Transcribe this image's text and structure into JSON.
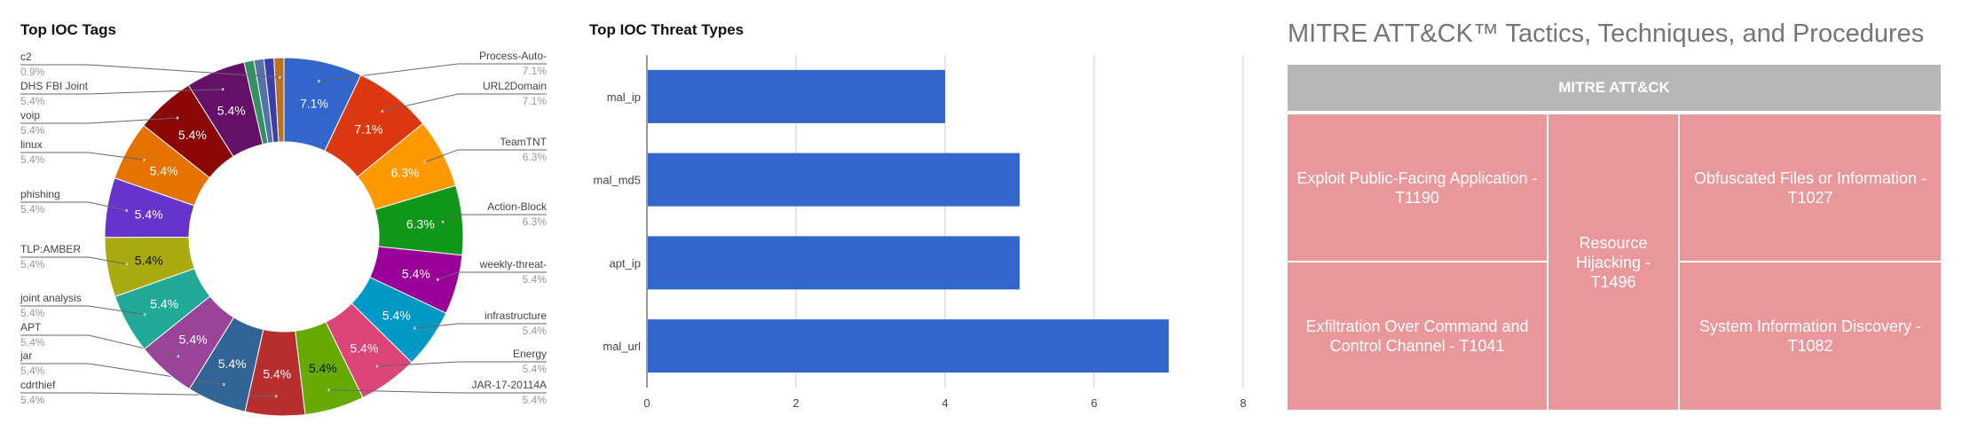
{
  "chart_data": [
    {
      "type": "pie",
      "title": "Top IOC Tags",
      "donut": true,
      "slices": [
        {
          "label": "Process-Auto-",
          "pct_label": "7.1%",
          "value": 7.1,
          "color": "#3366cc"
        },
        {
          "label": "URL2Domain",
          "pct_label": "7.1%",
          "value": 7.1,
          "color": "#dc3912"
        },
        {
          "label": "TeamTNT",
          "pct_label": "6.3%",
          "value": 6.3,
          "color": "#ff9900"
        },
        {
          "label": "Action-Block",
          "pct_label": "6.3%",
          "value": 6.3,
          "color": "#109618"
        },
        {
          "label": "weekly-threat-",
          "pct_label": "5.4%",
          "value": 5.4,
          "color": "#990099"
        },
        {
          "label": "infrastructure",
          "pct_label": "5.4%",
          "value": 5.4,
          "color": "#0099c6"
        },
        {
          "label": "Energy",
          "pct_label": "5.4%",
          "value": 5.4,
          "color": "#dd4477"
        },
        {
          "label": "JAR-17-20114A",
          "pct_label": "5.4%",
          "value": 5.4,
          "color": "#66aa00"
        },
        {
          "label": "cdrthief",
          "pct_label": "5.4%",
          "value": 5.4,
          "color": "#b82e2e"
        },
        {
          "label": "jar",
          "pct_label": "5.4%",
          "value": 5.4,
          "color": "#316395"
        },
        {
          "label": "APT",
          "pct_label": "5.4%",
          "value": 5.4,
          "color": "#994499"
        },
        {
          "label": "joint analysis",
          "pct_label": "5.4%",
          "value": 5.4,
          "color": "#22aa99"
        },
        {
          "label": "TLP:AMBER",
          "pct_label": "5.4%",
          "value": 5.4,
          "color": "#aaaa11"
        },
        {
          "label": "phishing",
          "pct_label": "5.4%",
          "value": 5.4,
          "color": "#6633cc"
        },
        {
          "label": "linux",
          "pct_label": "5.4%",
          "value": 5.4,
          "color": "#e67300"
        },
        {
          "label": "voip",
          "pct_label": "5.4%",
          "value": 5.4,
          "color": "#8b0707"
        },
        {
          "label": "DHS FBI Joint",
          "pct_label": "5.4%",
          "value": 5.4,
          "color": "#651067"
        },
        {
          "label": "",
          "pct_label": "",
          "value": 0.9,
          "color": "#329262"
        },
        {
          "label": "",
          "pct_label": "",
          "value": 0.9,
          "color": "#5574a6"
        },
        {
          "label": "",
          "pct_label": "",
          "value": 0.9,
          "color": "#3b3eac"
        },
        {
          "label": "c2",
          "pct_label": "0.9%",
          "value": 0.9,
          "color": "#b77322"
        }
      ]
    },
    {
      "type": "bar",
      "orientation": "horizontal",
      "title": "Top IOC Threat Types",
      "categories": [
        "mal_ip",
        "mal_md5",
        "apt_ip",
        "mal_url"
      ],
      "values": [
        4,
        5,
        5,
        7
      ],
      "xlim": [
        0,
        8
      ],
      "xticks": [
        "0",
        "2",
        "4",
        "6",
        "8"
      ],
      "bar_color": "#3366cc",
      "grid": true
    },
    {
      "type": "table",
      "title": "MITRE ATT&CK™ Tactics, Techniques, and Procedures",
      "header": "MITRE ATT&CK",
      "cells": [
        "Exploit Public-Facing Application - T1190",
        "Exfiltration Over Command and Control Channel - T1041",
        "Resource Hijacking - T1496",
        "Obfuscated Files or Information - T1027",
        "System Information Discovery - T1082"
      ],
      "cell_color": "#e9979b",
      "header_color": "#b7b7b7"
    }
  ]
}
